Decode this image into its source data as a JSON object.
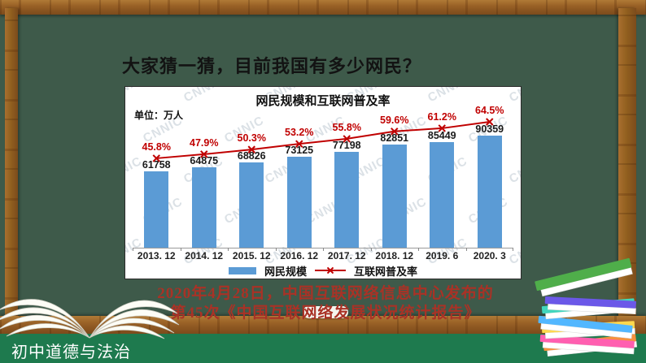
{
  "slide": {
    "heading": "大家猜一猜，目前我国有多少网民？",
    "source_line1": "2020年4月28日，中国互联网络信息中心发布的",
    "source_line2": "第45次《中国互联网络发展状况统计报告》",
    "footer_label": "初中道德与法治"
  },
  "chart_data": {
    "type": "bar",
    "title": "网民规模和互联网普及率",
    "unit_label": "单位：万人",
    "watermark": "CNNIC",
    "categories": [
      "2013. 12",
      "2014. 12",
      "2015. 12",
      "2016. 12",
      "2017. 12",
      "2018. 12",
      "2019. 6",
      "2020. 3"
    ],
    "series": [
      {
        "name": "网民规模",
        "type": "bar",
        "color": "#5B9BD5",
        "values": [
          61758,
          64875,
          68826,
          73125,
          77198,
          82851,
          85449,
          90359
        ]
      },
      {
        "name": "互联网普及率",
        "type": "line",
        "color": "#C00000",
        "values": [
          45.8,
          47.9,
          50.3,
          53.2,
          55.8,
          59.6,
          61.2,
          64.5
        ],
        "labels": [
          "45.8%",
          "47.9%",
          "50.3%",
          "53.2%",
          "55.8%",
          "59.6%",
          "61.2%",
          "64.5%"
        ]
      }
    ],
    "legend_position": "bottom",
    "grid": false,
    "ylim_bar": [
      0,
      90359
    ],
    "ylim_line_pct": [
      0,
      64.5
    ]
  },
  "colors": {
    "chalkboard": "#3e5a4a",
    "wood": "#9a6227",
    "footer_green": "#1e7a4e",
    "bar_blue": "#5B9BD5",
    "line_red": "#C00000",
    "source_red": "#a93226"
  }
}
